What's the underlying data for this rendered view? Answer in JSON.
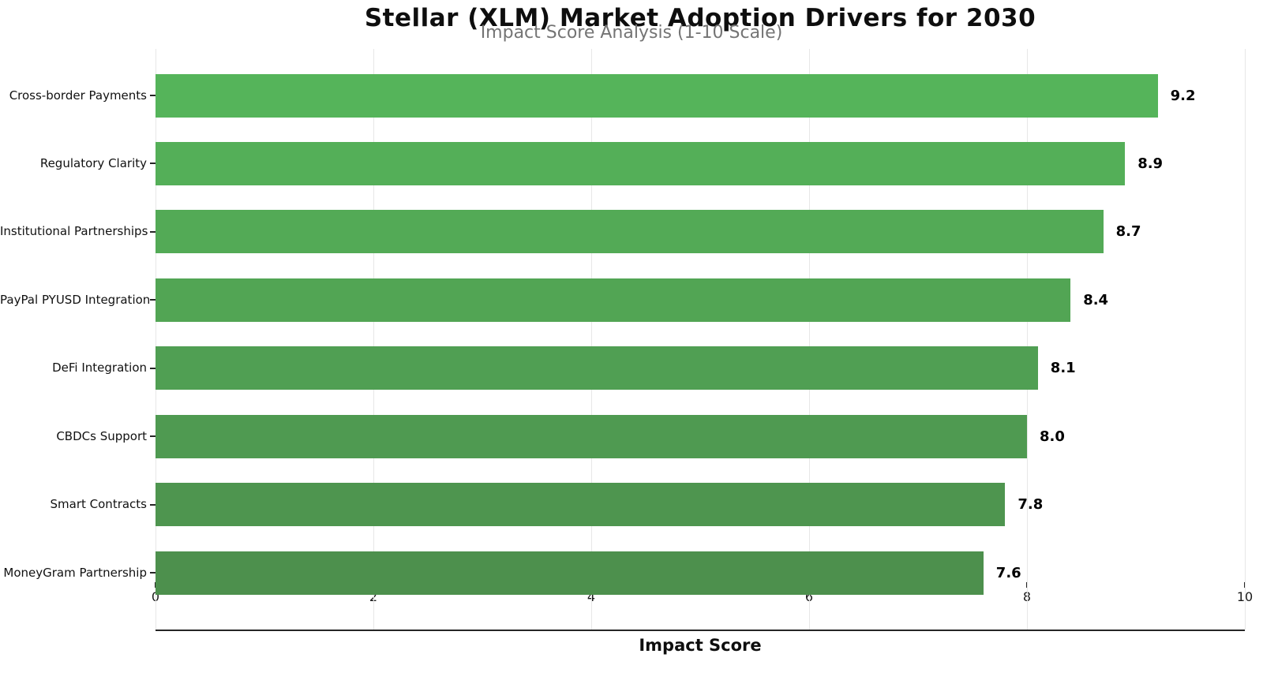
{
  "chart_data": {
    "type": "bar",
    "orientation": "horizontal",
    "title": "Stellar (XLM) Market Adoption Drivers for 2030",
    "subtitle": "Impact Score Analysis (1-10 Scale)",
    "xlabel": "Impact Score",
    "categories": [
      "Cross-border Payments",
      "Regulatory Clarity",
      "Institutional Partnerships",
      "PayPal PYUSD Integration",
      "DeFi Integration",
      "CBDCs Support",
      "Smart Contracts",
      "MoneyGram Partnership"
    ],
    "values": [
      9.2,
      8.9,
      8.7,
      8.4,
      8.1,
      8.0,
      7.8,
      7.6
    ],
    "value_labels": [
      "9.2",
      "8.9",
      "8.7",
      "8.4",
      "8.1",
      "8.0",
      "7.8",
      "7.6"
    ],
    "bar_colors": [
      "#55b45a",
      "#54af58",
      "#53aa56",
      "#52a554",
      "#509f53",
      "#4f9a51",
      "#4e954f",
      "#4d904d"
    ],
    "xlim": [
      0,
      10
    ],
    "x_ticks": [
      "0",
      "2",
      "4",
      "6",
      "8",
      "10"
    ],
    "grid": {
      "vertical": true,
      "color": "#e7e7e7"
    },
    "legend_position": "none"
  },
  "colors": {
    "background": "#ffffff",
    "axis": "#262626",
    "gridline": "#e7e7e7",
    "title": "#0e0e0e",
    "subtitle": "#747474",
    "category_label": "#111111",
    "value_label": "#000000"
  }
}
